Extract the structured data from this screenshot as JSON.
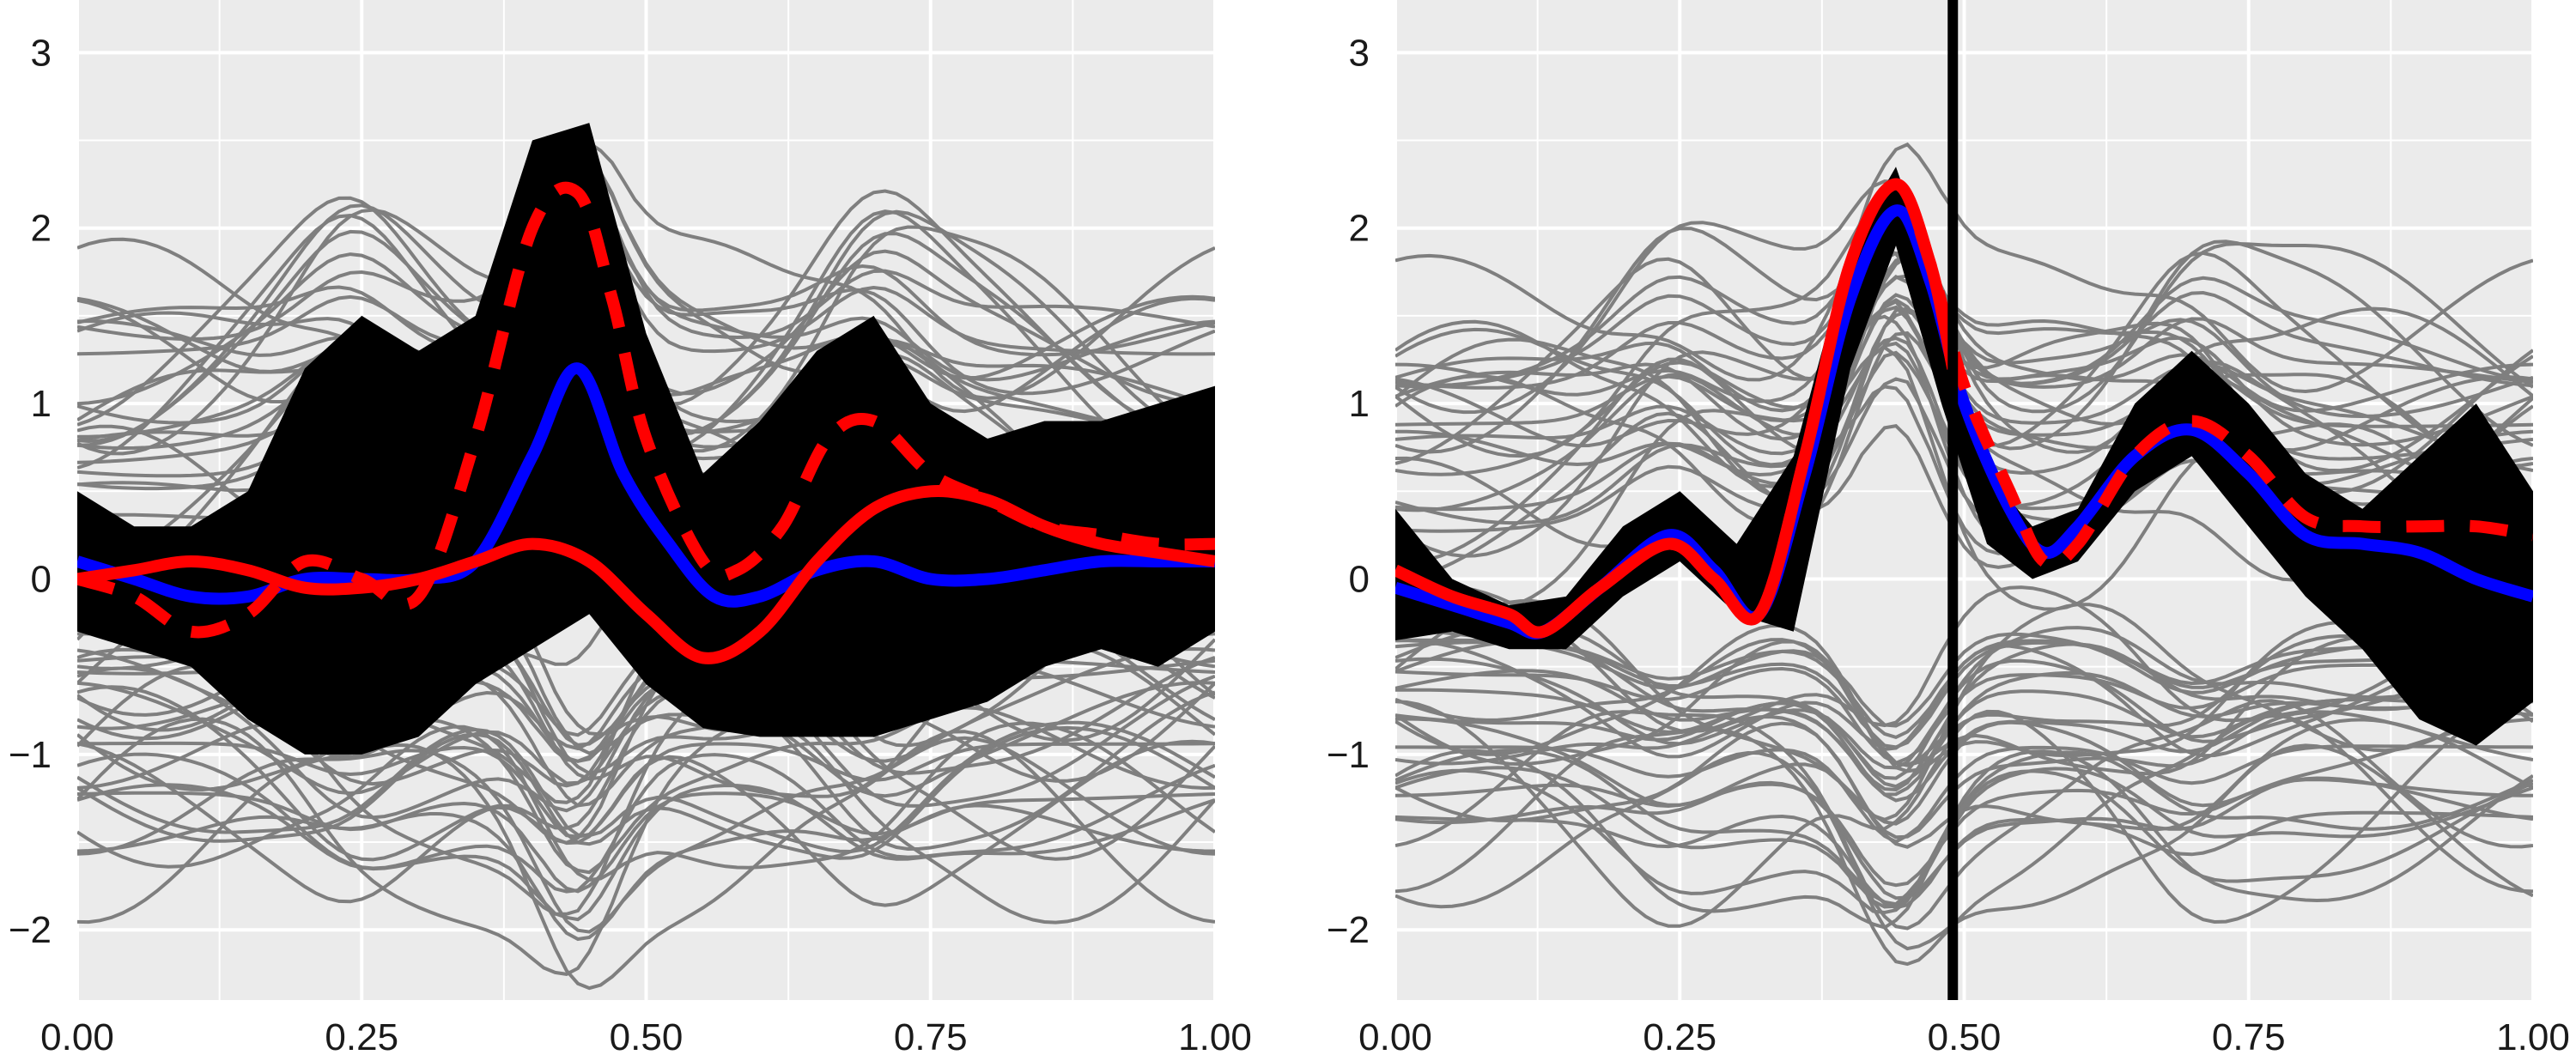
{
  "chart_data": [
    {
      "type": "line",
      "title": "",
      "xlabel": "",
      "ylabel": "",
      "xlim": [
        0,
        1
      ],
      "ylim": [
        -2.4,
        3.3
      ],
      "grid": true,
      "background": "#ebebeb",
      "x_ticks": [
        {
          "value": 0,
          "label": "0.00"
        },
        {
          "value": 0.25,
          "label": "0.25"
        },
        {
          "value": 0.5,
          "label": "0.50"
        },
        {
          "value": 0.75,
          "label": "0.75"
        },
        {
          "value": 1,
          "label": "1.00"
        }
      ],
      "y_ticks": [
        {
          "value": -2,
          "label": "−2"
        },
        {
          "value": -1,
          "label": "−1"
        },
        {
          "value": 0,
          "label": "0"
        },
        {
          "value": 1,
          "label": "1"
        },
        {
          "value": 2,
          "label": "2"
        },
        {
          "value": 3,
          "label": "3"
        }
      ],
      "band": {
        "color": "#000000",
        "x": [
          0,
          0.05,
          0.1,
          0.15,
          0.2,
          0.25,
          0.3,
          0.35,
          0.4,
          0.45,
          0.5,
          0.55,
          0.6,
          0.65,
          0.7,
          0.75,
          0.8,
          0.85,
          0.9,
          0.95,
          1
        ],
        "upper": [
          0.5,
          0.3,
          0.3,
          0.5,
          1.2,
          1.5,
          1.3,
          1.5,
          2.5,
          2.6,
          1.4,
          0.6,
          0.9,
          1.3,
          1.5,
          1.0,
          0.8,
          0.9,
          0.9,
          1.0,
          1.1
        ],
        "lower": [
          -0.3,
          -0.4,
          -0.5,
          -0.8,
          -1.0,
          -1.0,
          -0.9,
          -0.6,
          -0.4,
          -0.2,
          -0.6,
          -0.85,
          -0.9,
          -0.9,
          -0.9,
          -0.8,
          -0.7,
          -0.5,
          -0.4,
          -0.5,
          -0.3
        ]
      },
      "series": [
        {
          "color": "#0000ff",
          "style": "solid",
          "x": [
            0,
            0.05,
            0.1,
            0.15,
            0.2,
            0.25,
            0.3,
            0.35,
            0.4,
            0.44,
            0.48,
            0.52,
            0.56,
            0.6,
            0.65,
            0.7,
            0.75,
            0.8,
            0.85,
            0.9,
            0.95,
            1
          ],
          "y": [
            0.1,
            0.0,
            -0.1,
            -0.1,
            0.0,
            0.0,
            0.0,
            0.1,
            0.7,
            1.2,
            0.6,
            0.2,
            -0.1,
            -0.1,
            0.05,
            0.1,
            0.0,
            0.0,
            0.05,
            0.1,
            0.1,
            0.1
          ]
        },
        {
          "color": "#ff0000",
          "style": "dashed",
          "x": [
            0,
            0.05,
            0.1,
            0.15,
            0.2,
            0.25,
            0.3,
            0.35,
            0.4,
            0.44,
            0.47,
            0.5,
            0.55,
            0.58,
            0.62,
            0.66,
            0.7,
            0.75,
            0.8,
            0.85,
            0.9,
            0.95,
            1
          ],
          "y": [
            0.0,
            -0.1,
            -0.3,
            -0.2,
            0.1,
            0.0,
            -0.1,
            0.8,
            2.0,
            2.2,
            1.6,
            0.8,
            0.1,
            0.05,
            0.3,
            0.8,
            0.9,
            0.6,
            0.45,
            0.3,
            0.25,
            0.2,
            0.2
          ]
        },
        {
          "color": "#ff0000",
          "style": "solid",
          "x": [
            0,
            0.05,
            0.1,
            0.15,
            0.2,
            0.25,
            0.3,
            0.35,
            0.4,
            0.45,
            0.5,
            0.55,
            0.6,
            0.65,
            0.7,
            0.75,
            0.8,
            0.85,
            0.9,
            0.95,
            1
          ],
          "y": [
            0.0,
            0.05,
            0.1,
            0.05,
            -0.05,
            -0.05,
            0.0,
            0.1,
            0.2,
            0.1,
            -0.2,
            -0.45,
            -0.3,
            0.1,
            0.4,
            0.5,
            0.45,
            0.3,
            0.2,
            0.15,
            0.1
          ]
        }
      ],
      "vline": null
    },
    {
      "type": "line",
      "title": "",
      "xlabel": "",
      "ylabel": "",
      "xlim": [
        0,
        1
      ],
      "ylim": [
        -2.4,
        3.3
      ],
      "grid": true,
      "background": "#ebebeb",
      "x_ticks": [
        {
          "value": 0,
          "label": "0.00"
        },
        {
          "value": 0.25,
          "label": "0.25"
        },
        {
          "value": 0.5,
          "label": "0.50"
        },
        {
          "value": 0.75,
          "label": "0.75"
        },
        {
          "value": 1,
          "label": "1.00"
        }
      ],
      "y_ticks": [
        {
          "value": -2,
          "label": "−2"
        },
        {
          "value": -1,
          "label": "−1"
        },
        {
          "value": 0,
          "label": "0"
        },
        {
          "value": 1,
          "label": "1"
        },
        {
          "value": 2,
          "label": "2"
        },
        {
          "value": 3,
          "label": "3"
        }
      ],
      "band": {
        "color": "#000000",
        "x": [
          0,
          0.05,
          0.1,
          0.15,
          0.2,
          0.25,
          0.3,
          0.35,
          0.4,
          0.44,
          0.48,
          0.52,
          0.56,
          0.6,
          0.65,
          0.7,
          0.75,
          0.8,
          0.85,
          0.9,
          0.95,
          1
        ],
        "upper": [
          0.4,
          0.0,
          -0.15,
          -0.1,
          0.3,
          0.5,
          0.2,
          0.7,
          1.9,
          2.35,
          1.6,
          0.6,
          0.3,
          0.4,
          1.0,
          1.3,
          1.0,
          0.6,
          0.4,
          0.7,
          1.0,
          0.5
        ],
        "lower": [
          -0.35,
          -0.3,
          -0.4,
          -0.4,
          -0.1,
          0.1,
          -0.2,
          -0.3,
          1.2,
          1.9,
          1.0,
          0.2,
          0.0,
          0.1,
          0.5,
          0.7,
          0.3,
          -0.1,
          -0.4,
          -0.8,
          -0.95,
          -0.7
        ]
      },
      "series": [
        {
          "color": "#0000ff",
          "style": "solid",
          "x": [
            0,
            0.05,
            0.1,
            0.13,
            0.18,
            0.24,
            0.28,
            0.32,
            0.36,
            0.4,
            0.44,
            0.47,
            0.5,
            0.54,
            0.57,
            0.6,
            0.65,
            0.7,
            0.75,
            0.8,
            0.85,
            0.9,
            0.95,
            1
          ],
          "y": [
            -0.05,
            -0.15,
            -0.25,
            -0.3,
            -0.05,
            0.25,
            0.05,
            -0.2,
            0.6,
            1.6,
            2.1,
            1.7,
            1.0,
            0.4,
            0.15,
            0.3,
            0.7,
            0.85,
            0.6,
            0.25,
            0.2,
            0.15,
            0.0,
            -0.1
          ]
        },
        {
          "color": "#ff0000",
          "style": "dashed",
          "x": [
            0,
            0.05,
            0.1,
            0.13,
            0.18,
            0.24,
            0.28,
            0.32,
            0.36,
            0.4,
            0.44,
            0.47,
            0.5,
            0.54,
            0.57,
            0.6,
            0.65,
            0.7,
            0.75,
            0.8,
            0.85,
            0.9,
            0.95,
            1
          ],
          "y": [
            0.05,
            -0.1,
            -0.2,
            -0.3,
            -0.05,
            0.2,
            0.0,
            -0.2,
            0.7,
            1.8,
            2.25,
            1.8,
            1.1,
            0.5,
            0.1,
            0.2,
            0.7,
            0.9,
            0.7,
            0.35,
            0.3,
            0.3,
            0.3,
            0.25
          ]
        },
        {
          "color": "#ff0000",
          "style": "solid",
          "x": [
            0,
            0.05,
            0.1,
            0.13,
            0.18,
            0.24,
            0.28,
            0.32,
            0.36,
            0.4,
            0.44,
            0.47,
            0.49
          ],
          "y": [
            0.05,
            -0.1,
            -0.2,
            -0.3,
            -0.05,
            0.2,
            0.0,
            -0.2,
            0.7,
            1.8,
            2.25,
            1.8,
            1.2
          ]
        }
      ],
      "vline": {
        "x": 0.49,
        "color": "#000000"
      }
    }
  ]
}
